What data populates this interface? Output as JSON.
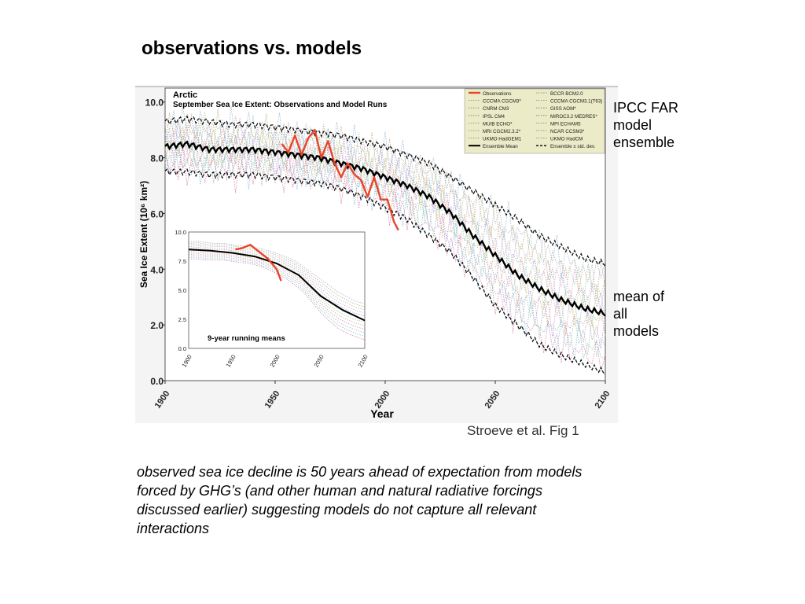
{
  "slide": {
    "title": "observations vs. models",
    "note_ensemble": "IPCC FAR model ensemble",
    "note_mean": "mean of all models",
    "caption": "observed sea ice decline is 50 years ahead of expectation from models forced by GHG’s (and other human and natural radiative forcings discussed earlier) suggesting models do not capture all relevant interactions"
  },
  "figure": {
    "title_line1": "Arctic",
    "title_line2": "September Sea Ice Extent: Observations and Model Runs",
    "source": "Stroeve et al. Fig 1",
    "inset_label": "9-year running means"
  },
  "colors": {
    "observations": "#e8452a",
    "mean": "#000000"
  },
  "chart_data": [
    {
      "type": "line",
      "xlabel": "Year",
      "ylabel": "Sea Ice Extent (10⁶ km²)",
      "xlim": [
        1900,
        2100
      ],
      "ylim": [
        0,
        10.5
      ],
      "xticks": [
        "1900",
        "1950",
        "2000",
        "2050",
        "2100"
      ],
      "yticks": [
        "0.0",
        "2.0",
        "4.0",
        "6.0",
        "8.0",
        "10.0"
      ],
      "legend_position": "top-right",
      "legend": [
        [
          "Observations",
          "BCCR BCM2.0"
        ],
        [
          "CCCMA CGCM3*",
          "CCCMA CGCM3.1(T63)"
        ],
        [
          "CNRM CM3",
          "GISS AOM*"
        ],
        [
          "IPSL CM4",
          "MIROC3.2 MEDRES*"
        ],
        [
          "MUIB ECHO*",
          "MPI ECHAM5"
        ],
        [
          "MRI CGCM2.3.2*",
          "NCAR CCSM3*"
        ],
        [
          "UKMO HadGEM1",
          "UKMO HadCM"
        ],
        [
          "Ensemble Mean",
          "Ensemble ± std. dev."
        ]
      ],
      "series": [
        {
          "name": "Ensemble Mean",
          "x": [
            1900,
            1910,
            1920,
            1930,
            1940,
            1950,
            1960,
            1970,
            1980,
            1990,
            2000,
            2010,
            2020,
            2030,
            2040,
            2050,
            2060,
            2070,
            2080,
            2090,
            2100
          ],
          "y": [
            8.4,
            8.5,
            8.3,
            8.3,
            8.3,
            8.2,
            8.1,
            8.0,
            7.8,
            7.6,
            7.3,
            7.0,
            6.6,
            6.0,
            5.2,
            4.5,
            3.8,
            3.3,
            2.9,
            2.6,
            2.4
          ]
        },
        {
          "name": "Ensemble ± std. dev. (upper)",
          "x": [
            1900,
            1910,
            1920,
            1930,
            1940,
            1950,
            1960,
            1970,
            1980,
            1990,
            2000,
            2010,
            2020,
            2030,
            2040,
            2050,
            2060,
            2070,
            2080,
            2090,
            2100
          ],
          "y": [
            9.3,
            9.4,
            9.3,
            9.2,
            9.2,
            9.1,
            9.0,
            8.9,
            8.8,
            8.6,
            8.4,
            8.1,
            7.8,
            7.3,
            6.8,
            6.3,
            5.8,
            5.2,
            4.8,
            4.4,
            4.2
          ]
        },
        {
          "name": "Ensemble ± std. dev. (lower)",
          "x": [
            1900,
            1910,
            1920,
            1930,
            1940,
            1950,
            1960,
            1970,
            1980,
            1990,
            2000,
            2010,
            2020,
            2030,
            2040,
            2050,
            2060,
            2070,
            2080,
            2090,
            2100
          ],
          "y": [
            7.5,
            7.5,
            7.4,
            7.4,
            7.4,
            7.3,
            7.2,
            7.1,
            6.9,
            6.6,
            6.2,
            5.8,
            5.2,
            4.6,
            3.7,
            2.7,
            2.0,
            1.3,
            0.9,
            0.6,
            0.3
          ]
        },
        {
          "name": "Observations",
          "x": [
            1953,
            1956,
            1959,
            1962,
            1965,
            1968,
            1971,
            1974,
            1977,
            1980,
            1983,
            1986,
            1989,
            1992,
            1995,
            1998,
            2001,
            2004,
            2006
          ],
          "y": [
            8.5,
            8.2,
            8.8,
            8.1,
            8.7,
            9.0,
            8.0,
            8.6,
            7.8,
            7.3,
            7.8,
            7.4,
            7.2,
            6.6,
            7.3,
            6.5,
            6.5,
            5.7,
            5.4
          ]
        }
      ]
    },
    {
      "type": "line",
      "title": "9-year running means",
      "xlim": [
        1900,
        2100
      ],
      "ylim": [
        0,
        10
      ],
      "xticks": [
        "1900",
        "1950",
        "2000",
        "2050",
        "2100"
      ],
      "yticks": [
        "0.0",
        "2.5",
        "5.0",
        "7.5",
        "10.0"
      ],
      "series": [
        {
          "name": "Ensemble Mean",
          "x": [
            1900,
            1925,
            1950,
            1975,
            2000,
            2025,
            2050,
            2075,
            2100
          ],
          "y": [
            8.5,
            8.4,
            8.2,
            7.9,
            7.3,
            6.3,
            4.5,
            3.3,
            2.4
          ]
        },
        {
          "name": "Observations",
          "x": [
            1953,
            1960,
            1970,
            1980,
            1990,
            2000,
            2005
          ],
          "y": [
            8.5,
            8.6,
            8.9,
            8.3,
            7.7,
            6.8,
            5.8
          ]
        }
      ]
    }
  ]
}
